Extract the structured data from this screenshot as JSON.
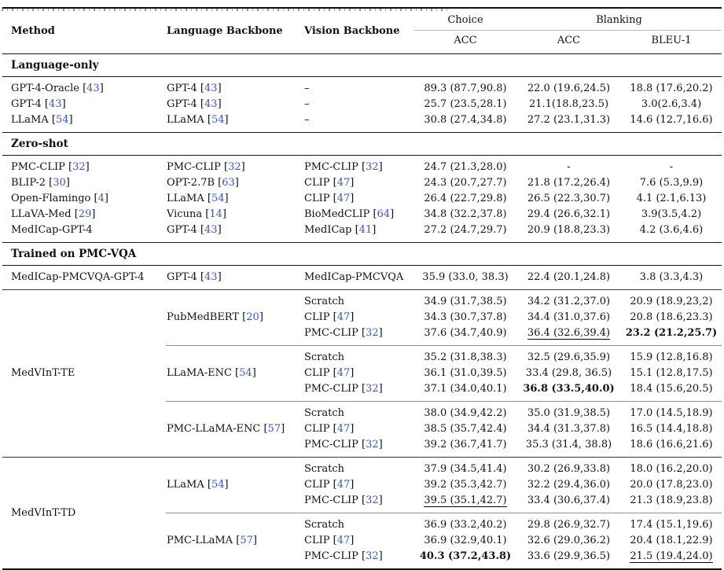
{
  "colors": {
    "citation_blue": "#3355dd"
  },
  "header": {
    "method": "Method",
    "language": "Language Backbone",
    "vision": "Vision Backbone",
    "group_choice": "Choice",
    "group_blanking": "Blanking",
    "choice_acc": "ACC",
    "blanking_acc": "ACC",
    "blanking_bleu": "BLEU-1"
  },
  "sections": [
    {
      "title": "Language-only",
      "rows": [
        {
          "method": {
            "name": "GPT-4-Oracle",
            "cite": "43"
          },
          "language": {
            "name": "GPT-4",
            "cite": "43"
          },
          "vision": {
            "name": "–"
          },
          "values": [
            "89.3 (87.7,90.8)",
            "22.0 (19.6,24.5)",
            "18.8 (17.6,20.2)"
          ]
        },
        {
          "method": {
            "name": "GPT-4",
            "cite": "43"
          },
          "language": {
            "name": "GPT-4",
            "cite": "43"
          },
          "vision": {
            "name": "–"
          },
          "values": [
            "25.7 (23.5,28.1)",
            "21.1(18.8,23.5)",
            "3.0(2.6,3.4)"
          ]
        },
        {
          "method": {
            "name": "LLaMA",
            "cite": "54"
          },
          "language": {
            "name": "LLaMA",
            "cite": "54"
          },
          "vision": {
            "name": "–"
          },
          "values": [
            "30.8 (27.4,34.8)",
            "27.2 (23.1,31.3)",
            "14.6 (12.7,16.6)"
          ]
        }
      ]
    },
    {
      "title": "Zero-shot",
      "rows": [
        {
          "method": {
            "name": "PMC-CLIP",
            "cite": "32"
          },
          "language": {
            "name": "PMC-CLIP",
            "cite": "32"
          },
          "vision": {
            "name": "PMC-CLIP",
            "cite": "32"
          },
          "values": [
            "24.7 (21.3,28.0)",
            "-",
            "-"
          ]
        },
        {
          "method": {
            "name": "BLIP-2",
            "cite": "30"
          },
          "language": {
            "name": "OPT-2.7B",
            "cite": "63"
          },
          "vision": {
            "name": "CLIP",
            "cite": "47"
          },
          "values": [
            "24.3 (20.7,27.7)",
            "21.8 (17.2,26.4)",
            "7.6 (5.3,9.9)"
          ]
        },
        {
          "method": {
            "name": "Open-Flamingo",
            "cite": "4"
          },
          "language": {
            "name": "LLaMA",
            "cite": "54"
          },
          "vision": {
            "name": "CLIP",
            "cite": "47"
          },
          "values": [
            "26.4 (22.7,29.8)",
            "26.5 (22.3,30.7)",
            "4.1 (2.1,6.13)"
          ]
        },
        {
          "method": {
            "name": "LLaVA-Med",
            "cite": "29"
          },
          "language": {
            "name": "Vicuna",
            "cite": "14"
          },
          "vision": {
            "name": "BioMedCLIP",
            "cite": "64"
          },
          "values": [
            "34.8 (32.2,37.8)",
            "29.4 (26.6,32.1)",
            "3.9(3.5,4.2)"
          ]
        },
        {
          "method": {
            "name": "MedICap-GPT-4"
          },
          "language": {
            "name": "GPT-4",
            "cite": "43"
          },
          "vision": {
            "name": "MedICap",
            "cite": "41"
          },
          "values": [
            "27.2 (24.7,29.7)",
            "20.9 (18.8,23.3)",
            "4.2 (3.6,4.6)"
          ]
        }
      ]
    },
    {
      "title": "Trained on PMC-VQA",
      "rows": [
        {
          "method": {
            "name": "MedICap-PMCVQA-GPT-4"
          },
          "language": {
            "name": "GPT-4",
            "cite": "43"
          },
          "vision": {
            "name": "MedICap-PMCVQA"
          },
          "values": [
            "35.9 (33.0, 38.3)",
            "22.4 (20.1,24.8)",
            "3.8 (3.3,4.3)"
          ]
        }
      ],
      "groups": [
        {
          "label": "MedVInT-TE",
          "subgroups": [
            {
              "language": {
                "name": "PubMedBERT",
                "cite": "20"
              },
              "rows": [
                {
                  "vision": {
                    "name": "Scratch"
                  },
                  "values": [
                    "34.9 (31.7,38.5)",
                    "34.2 (31.2,37.0)",
                    "20.9 (18.9,23,2)"
                  ]
                },
                {
                  "vision": {
                    "name": "CLIP",
                    "cite": "47"
                  },
                  "values": [
                    "34.3 (30.7,37.8)",
                    "34.4 (31.0,37.6)",
                    "20.8 (18.6,23.3)"
                  ]
                },
                {
                  "vision": {
                    "name": "PMC-CLIP",
                    "cite": "32"
                  },
                  "values": [
                    "37.6 (34.7,40.9)",
                    {
                      "text": "36.4 (32.6,39.4)",
                      "underline": true
                    },
                    {
                      "text": "23.2 (21.2,25.7)",
                      "bold": true
                    }
                  ]
                }
              ]
            },
            {
              "language": {
                "name": "LLaMA-ENC",
                "cite": "54"
              },
              "rows": [
                {
                  "vision": {
                    "name": "Scratch"
                  },
                  "values": [
                    "35.2 (31.8,38.3)",
                    "32.5 (29.6,35.9)",
                    "15.9 (12.8,16.8)"
                  ]
                },
                {
                  "vision": {
                    "name": "CLIP",
                    "cite": "47"
                  },
                  "values": [
                    "36.1 (31.0,39.5)",
                    "33.4 (29.8, 36.5)",
                    "15.1 (12.8,17.5)"
                  ]
                },
                {
                  "vision": {
                    "name": "PMC-CLIP",
                    "cite": "32"
                  },
                  "values": [
                    "37.1 (34.0,40.1)",
                    {
                      "text": "36.8 (33.5,40.0)",
                      "bold": true
                    },
                    "18.4 (15.6,20.5)"
                  ]
                }
              ]
            },
            {
              "language": {
                "name": "PMC-LLaMA-ENC",
                "cite": "57"
              },
              "rows": [
                {
                  "vision": {
                    "name": "Scratch"
                  },
                  "values": [
                    "38.0 (34.9,42.2)",
                    "35.0 (31.9,38.5)",
                    "17.0 (14.5,18.9)"
                  ]
                },
                {
                  "vision": {
                    "name": "CLIP",
                    "cite": "47"
                  },
                  "values": [
                    "38.5 (35.7,42.4)",
                    "34.4 (31.3,37.8)",
                    "16.5 (14.4,18.8)"
                  ]
                },
                {
                  "vision": {
                    "name": "PMC-CLIP",
                    "cite": "32"
                  },
                  "values": [
                    "39.2 (36.7,41.7)",
                    "35.3 (31.4, 38.8)",
                    "18.6 (16.6,21.6)"
                  ]
                }
              ]
            }
          ]
        },
        {
          "label": "MedVInT-TD",
          "subgroups": [
            {
              "language": {
                "name": "LLaMA",
                "cite": "54"
              },
              "rows": [
                {
                  "vision": {
                    "name": "Scratch"
                  },
                  "values": [
                    "37.9 (34.5,41.4)",
                    "30.2 (26.9,33.8)",
                    "18.0 (16.2,20.0)"
                  ]
                },
                {
                  "vision": {
                    "name": "CLIP",
                    "cite": "47"
                  },
                  "values": [
                    "39.2 (35.3,42.7)",
                    "32.2 (29.4,36.0)",
                    "20.0 (17.8,23.0)"
                  ]
                },
                {
                  "vision": {
                    "name": "PMC-CLIP",
                    "cite": "32"
                  },
                  "values": [
                    {
                      "text": "39.5 (35.1,42.7)",
                      "underline": true
                    },
                    "33.4 (30.6,37.4)",
                    "21.3 (18.9,23.8)"
                  ]
                }
              ]
            },
            {
              "language": {
                "name": "PMC-LLaMA",
                "cite": "57"
              },
              "rows": [
                {
                  "vision": {
                    "name": "Scratch"
                  },
                  "values": [
                    "36.9 (33.2,40.2)",
                    "29.8 (26.9,32.7)",
                    "17.4 (15.1,19.6)"
                  ]
                },
                {
                  "vision": {
                    "name": "CLIP",
                    "cite": "47"
                  },
                  "values": [
                    "36.9 (32.9,40.1)",
                    "32.6 (29.0,36.2)",
                    "20.4 (18.1,22.9)"
                  ]
                },
                {
                  "vision": {
                    "name": "PMC-CLIP",
                    "cite": "32"
                  },
                  "values": [
                    {
                      "text": "40.3 (37.2,43.8)",
                      "bold": true
                    },
                    "33.6 (29.9,36.5)",
                    {
                      "text": "21.5 (19.4,24.0)",
                      "underline": true
                    }
                  ]
                }
              ]
            }
          ]
        }
      ]
    }
  ]
}
